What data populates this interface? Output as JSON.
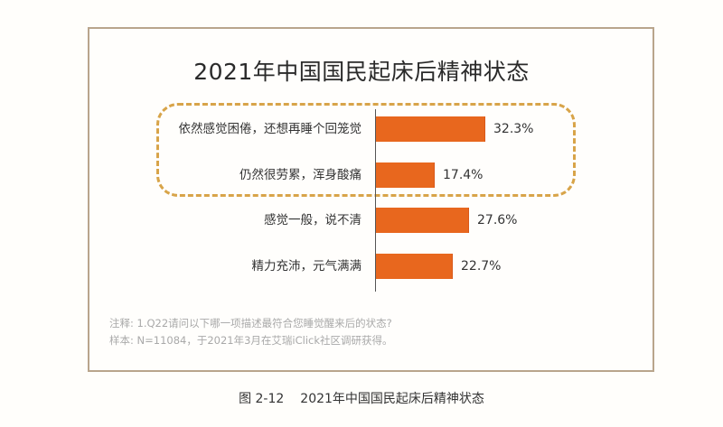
{
  "chart_data": {
    "type": "bar",
    "orientation": "horizontal",
    "title": "2021年中国国民起床后精神状态",
    "categories": [
      "依然感觉困倦，还想再睡个回笼觉",
      "仍然很劳累，浑身酸痛",
      "感觉一般，说不清",
      "精力充沛，元气满满"
    ],
    "values": [
      32.3,
      17.4,
      27.6,
      22.7
    ],
    "value_labels": [
      "32.3%",
      "17.4%",
      "27.6%",
      "22.7%"
    ],
    "unit": "%",
    "xlabel": "",
    "ylabel": "",
    "xlim": [
      0,
      35
    ],
    "grid": false,
    "legend": null,
    "highlight": {
      "style": "dashed-rounded-box",
      "categories": [
        "依然感觉困倦，还想再睡个回笼觉",
        "仍然很劳累，浑身酸痛"
      ]
    },
    "colors": {
      "bar": "#e8671e",
      "highlight_border": "#d8a449",
      "frame": "#b9a58c"
    }
  },
  "notes": {
    "note": "注释: 1.Q22请问以下哪一项描述最符合您睡觉醒来后的状态?",
    "sample": "样本: N=11084，于2021年3月在艾瑞iClick社区调研获得。"
  },
  "caption": {
    "figure_number": "图 2-12",
    "text": "2021年中国国民起床后精神状态"
  }
}
